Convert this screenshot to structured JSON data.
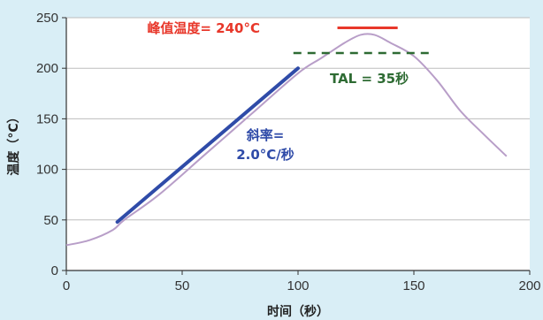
{
  "chart_data": {
    "type": "line",
    "xlabel": "时间（秒）",
    "ylabel": "温度（°C）",
    "xlim": [
      0,
      200
    ],
    "ylim": [
      0,
      250
    ],
    "x_ticks": [
      0,
      50,
      100,
      150,
      200
    ],
    "y_ticks": [
      0,
      50,
      100,
      150,
      200,
      250
    ],
    "grid": "horizontal",
    "series": [
      {
        "color": "#b89ec8",
        "x": [
          0,
          10,
          20,
          25,
          40,
          60,
          80,
          100,
          110,
          120,
          127,
          133,
          140,
          150,
          160,
          170,
          180,
          190
        ],
        "y": [
          25,
          30,
          40,
          50,
          75,
          115,
          155,
          195,
          210,
          225,
          233,
          233,
          225,
          212,
          188,
          158,
          135,
          113
        ]
      }
    ],
    "annotations": {
      "peak": {
        "label": "峰值温度= 240°C",
        "color": "#e8372a",
        "value": 240,
        "x_range": [
          117,
          143
        ]
      },
      "tal": {
        "label": "TAL = 35秒",
        "color": "#2e6b33",
        "value": 215,
        "x_range": [
          98,
          158
        ]
      },
      "slope": {
        "line1": "斜率=",
        "line2": "2.0°C/秒",
        "color": "#2f4ba8",
        "from": [
          22,
          48
        ],
        "to": [
          100,
          200
        ]
      }
    }
  }
}
